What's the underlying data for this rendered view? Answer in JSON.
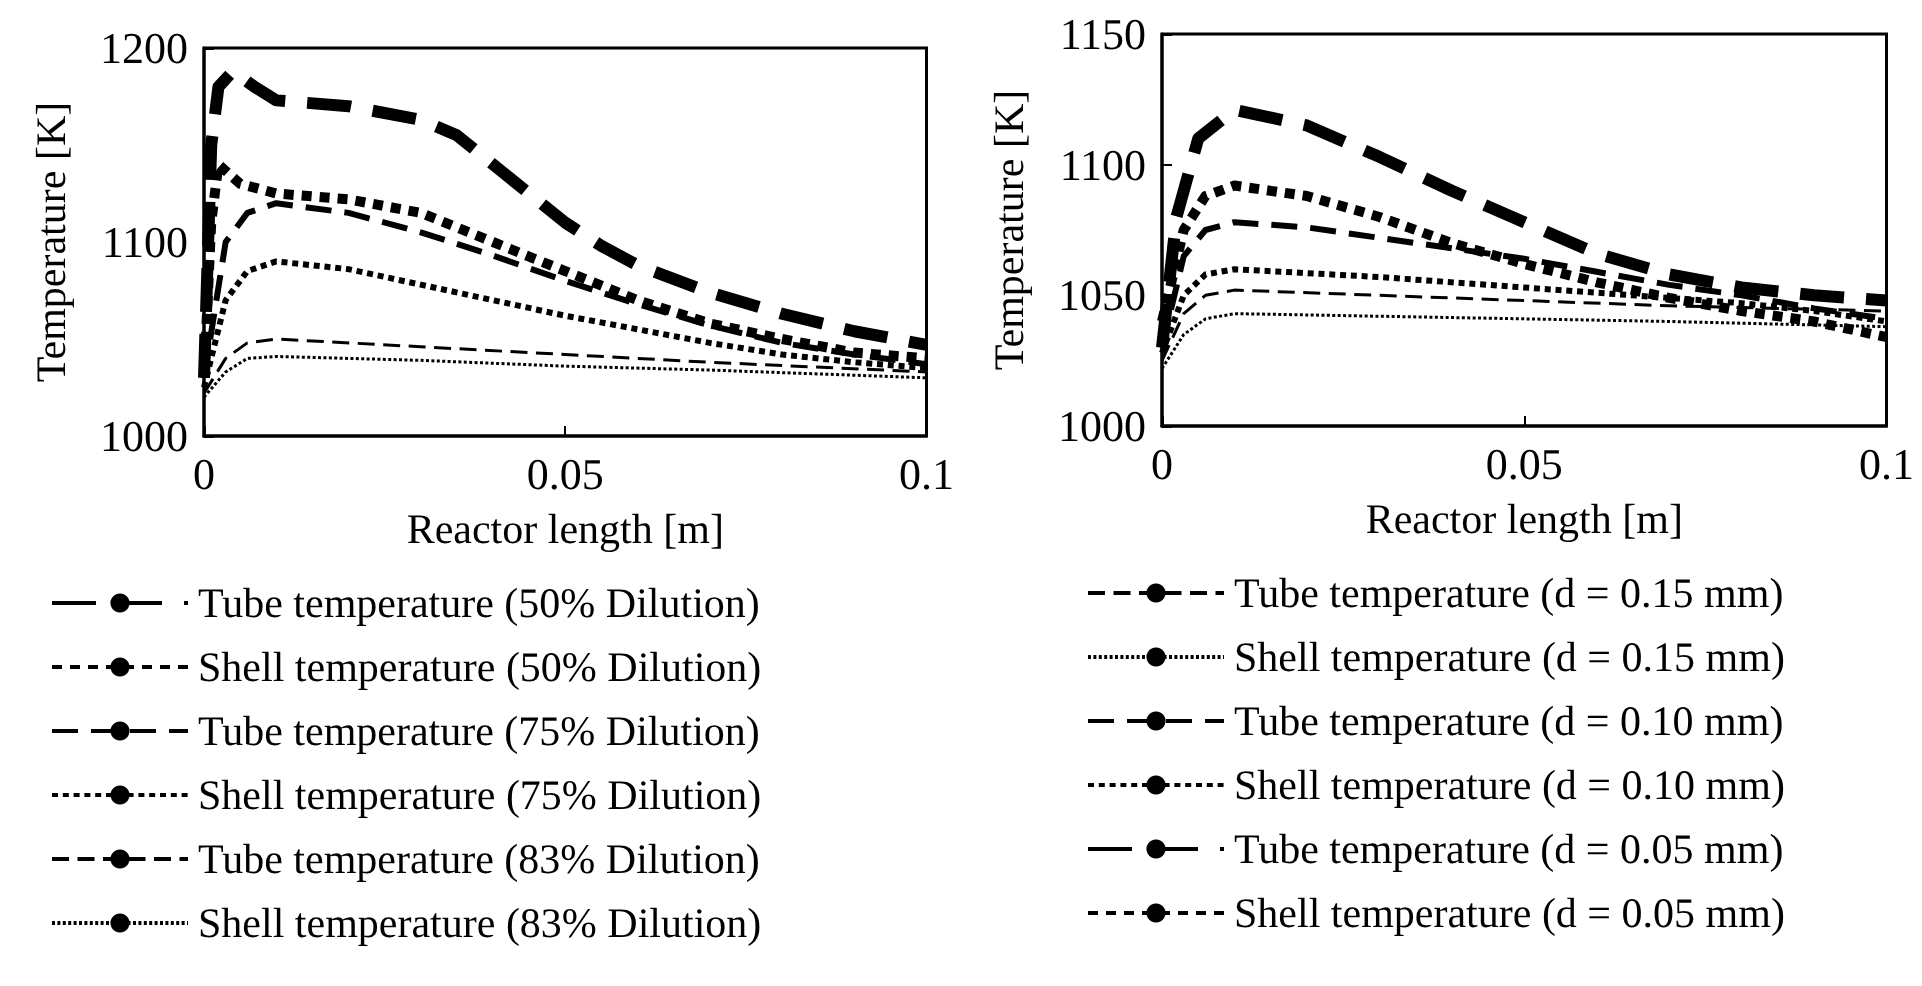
{
  "chart_data": [
    {
      "type": "line",
      "xlabel": "Reactor length [m]",
      "ylabel": "Temperature [K]",
      "xlim": [
        0,
        0.1
      ],
      "ylim": [
        1000,
        1200
      ],
      "xticks": [
        0,
        0.05,
        0.1
      ],
      "yticks": [
        1000,
        1100,
        1200
      ],
      "legend": "bottom",
      "marker": "none",
      "series": [
        {
          "name": "Tube temperature (50% Dilution)",
          "color": "#000000",
          "line_style": "dashed",
          "x": [
            0,
            0.001,
            0.002,
            0.004,
            0.007,
            0.01,
            0.02,
            0.03,
            0.035,
            0.04,
            0.045,
            0.05,
            0.055,
            0.06,
            0.07,
            0.08,
            0.09,
            0.1
          ],
          "values": [
            1030,
            1150,
            1180,
            1188,
            1180,
            1173,
            1170,
            1163,
            1155,
            1140,
            1125,
            1110,
            1098,
            1088,
            1074,
            1063,
            1054,
            1047
          ]
        },
        {
          "name": "Shell temperature (50% Dilution)",
          "color": "#000000",
          "line_style": "dotted",
          "x": [
            0,
            0.001,
            0.002,
            0.005,
            0.01,
            0.02,
            0.03,
            0.04,
            0.05,
            0.06,
            0.07,
            0.08,
            0.09,
            0.1
          ],
          "values": [
            1030,
            1110,
            1140,
            1130,
            1125,
            1122,
            1115,
            1100,
            1085,
            1070,
            1058,
            1050,
            1043,
            1040
          ]
        },
        {
          "name": "Tube temperature (75% Dilution)",
          "color": "#000000",
          "line_style": "dashed",
          "x": [
            0,
            0.003,
            0.006,
            0.01,
            0.02,
            0.03,
            0.04,
            0.05,
            0.06,
            0.07,
            0.08,
            0.09,
            0.1
          ],
          "values": [
            1030,
            1100,
            1115,
            1120,
            1115,
            1105,
            1093,
            1080,
            1068,
            1057,
            1048,
            1042,
            1037
          ]
        },
        {
          "name": "Shell temperature (75% Dilution)",
          "color": "#000000",
          "line_style": "dotted",
          "x": [
            0,
            0.003,
            0.006,
            0.01,
            0.02,
            0.03,
            0.04,
            0.05,
            0.06,
            0.07,
            0.08,
            0.09,
            0.1
          ],
          "values": [
            1025,
            1070,
            1085,
            1090,
            1086,
            1078,
            1070,
            1062,
            1055,
            1048,
            1042,
            1038,
            1035
          ]
        },
        {
          "name": "Tube temperature (83% Dilution)",
          "color": "#000000",
          "line_style": "dashed",
          "x": [
            0,
            0.003,
            0.006,
            0.01,
            0.03,
            0.05,
            0.07,
            0.1
          ],
          "values": [
            1022,
            1040,
            1048,
            1050,
            1046,
            1042,
            1038,
            1033
          ]
        },
        {
          "name": "Shell temperature (83% Dilution)",
          "color": "#000000",
          "line_style": "dotted",
          "x": [
            0,
            0.003,
            0.006,
            0.01,
            0.03,
            0.05,
            0.07,
            0.1
          ],
          "values": [
            1020,
            1033,
            1040,
            1041,
            1039,
            1036,
            1034,
            1030
          ]
        }
      ]
    },
    {
      "type": "line",
      "xlabel": "Reactor length [m]",
      "ylabel": "Temperature [K]",
      "xlim": [
        0,
        0.1
      ],
      "ylim": [
        1000,
        1150
      ],
      "xticks": [
        0,
        0.05,
        0.1
      ],
      "yticks": [
        1000,
        1050,
        1100,
        1150
      ],
      "legend": "bottom",
      "marker": "none",
      "series": [
        {
          "name": "Tube temperature (d = 0.15 mm)",
          "color": "#000000",
          "line_style": "dashed",
          "x": [
            0,
            0.003,
            0.006,
            0.01,
            0.03,
            0.05,
            0.07,
            0.1
          ],
          "values": [
            1025,
            1043,
            1050,
            1052,
            1050,
            1048,
            1046,
            1044
          ]
        },
        {
          "name": "Shell temperature (d = 0.15 mm)",
          "color": "#000000",
          "line_style": "dotted",
          "x": [
            0,
            0.003,
            0.006,
            0.01,
            0.03,
            0.05,
            0.07,
            0.1
          ],
          "values": [
            1022,
            1035,
            1041,
            1043,
            1042,
            1041,
            1040,
            1038
          ]
        },
        {
          "name": "Tube temperature (d = 0.10 mm)",
          "color": "#000000",
          "line_style": "dashed",
          "x": [
            0,
            0.003,
            0.006,
            0.01,
            0.02,
            0.03,
            0.04,
            0.05,
            0.06,
            0.07,
            0.08,
            0.09,
            0.1
          ],
          "values": [
            1030,
            1065,
            1075,
            1078,
            1076,
            1072,
            1068,
            1064,
            1059,
            1054,
            1050,
            1045,
            1041
          ]
        },
        {
          "name": "Shell temperature (d = 0.10 mm)",
          "color": "#000000",
          "line_style": "dotted",
          "x": [
            0,
            0.003,
            0.006,
            0.01,
            0.03,
            0.05,
            0.07,
            0.08,
            0.09,
            0.1
          ],
          "values": [
            1028,
            1050,
            1058,
            1060,
            1057,
            1053,
            1049,
            1047,
            1044,
            1040
          ]
        },
        {
          "name": "Tube temperature (d = 0.05 mm)",
          "color": "#000000",
          "line_style": "dashed",
          "x": [
            0,
            0.002,
            0.005,
            0.01,
            0.02,
            0.03,
            0.04,
            0.05,
            0.06,
            0.07,
            0.08,
            0.09,
            0.1
          ],
          "values": [
            1030,
            1080,
            1110,
            1121,
            1115,
            1103,
            1090,
            1078,
            1066,
            1058,
            1053,
            1050,
            1048
          ]
        },
        {
          "name": "Shell temperature (d = 0.05 mm)",
          "color": "#000000",
          "line_style": "dotted",
          "x": [
            0,
            0.003,
            0.006,
            0.01,
            0.02,
            0.03,
            0.04,
            0.05,
            0.06,
            0.07,
            0.08,
            0.09,
            0.1
          ],
          "values": [
            1040,
            1075,
            1088,
            1092,
            1088,
            1080,
            1070,
            1062,
            1055,
            1049,
            1044,
            1040,
            1034
          ]
        }
      ]
    }
  ]
}
